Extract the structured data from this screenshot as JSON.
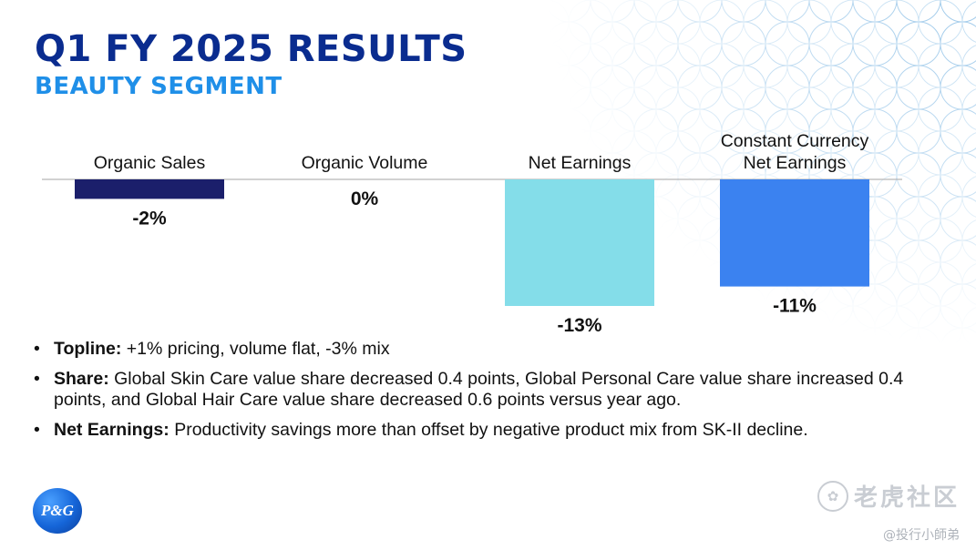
{
  "header": {
    "title": "Q1 FY 2025 RESULTS",
    "subtitle": "BEAUTY SEGMENT"
  },
  "chart_data": {
    "type": "bar",
    "categories": [
      "Organic Sales",
      "Organic Volume",
      "Net Earnings",
      "Constant Currency Net Earnings"
    ],
    "category_lines": [
      [
        "Organic Sales"
      ],
      [
        "Organic Volume"
      ],
      [
        "Net Earnings"
      ],
      [
        "Constant Currency",
        "Net Earnings"
      ]
    ],
    "values": [
      -2,
      0,
      -13,
      -11
    ],
    "data_labels": [
      "-2%",
      "0%",
      "-13%",
      "-11%"
    ],
    "colors": [
      "#1b1f6b",
      "#1b1f6b",
      "#84dde9",
      "#3b82f0"
    ],
    "unit": "%",
    "ylim": [
      -13,
      0
    ],
    "grid": false,
    "legend": "none"
  },
  "bullets": [
    {
      "lead": "Topline:",
      "text": " +1% pricing, volume flat, -3% mix"
    },
    {
      "lead": "Share:",
      "text": " Global Skin Care value share decreased 0.4 points, Global Personal Care value share increased 0.4 points, and Global Hair Care value share decreased 0.6 points versus year ago."
    },
    {
      "lead": "Net Earnings:",
      "text": " Productivity savings more than offset by negative product mix from SK-II decline."
    }
  ],
  "bullet_symbol": "•",
  "logo": {
    "text": "P&G"
  },
  "watermark": {
    "name": "老虎社区",
    "handle": "@投行小師弟"
  }
}
